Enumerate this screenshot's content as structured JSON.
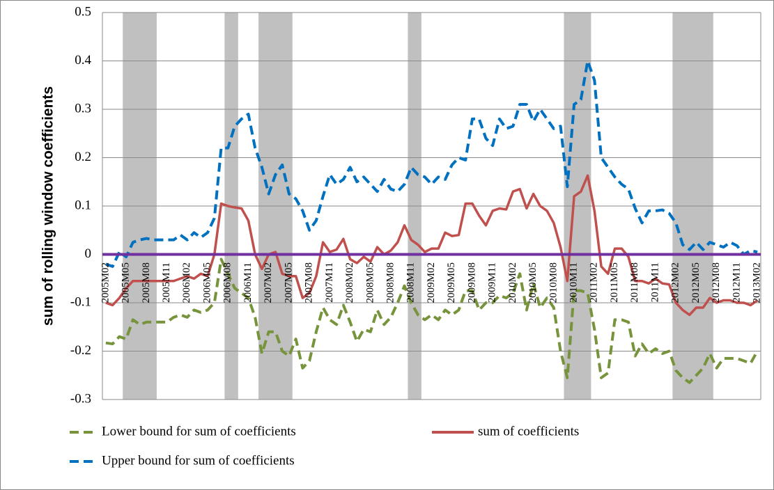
{
  "chart_data": {
    "type": "line",
    "y_axis_label": "sum of rolling window coefficients",
    "categories": [
      "2005M02",
      null,
      null,
      "2005M05",
      null,
      null,
      "2005M08",
      null,
      null,
      "2005M11",
      null,
      null,
      "2006M02",
      null,
      null,
      "2006M05",
      null,
      null,
      "2006M08",
      null,
      null,
      "2006M11",
      null,
      null,
      "2007M02",
      null,
      null,
      "2007M05",
      null,
      null,
      "2007M08",
      null,
      null,
      "2007M11",
      null,
      null,
      "2008M02",
      null,
      null,
      "2008M05",
      null,
      null,
      "2008M08",
      null,
      null,
      "2008M11",
      null,
      null,
      "2009M02",
      null,
      null,
      "2009M05",
      null,
      null,
      "2009M08",
      null,
      null,
      "2009M11",
      null,
      null,
      "2010M02",
      null,
      null,
      "2010M05",
      null,
      null,
      "2010M08",
      null,
      null,
      "2010M11",
      null,
      null,
      "2011M02",
      null,
      null,
      "2011M05",
      null,
      null,
      "2011M08",
      null,
      null,
      "2011M11",
      null,
      null,
      "2012M02",
      null,
      null,
      "2012M05",
      null,
      null,
      "2012M08",
      null,
      null,
      "2012M11",
      null,
      null,
      "2013M02"
    ],
    "series": [
      {
        "name": "Lower bound for sum of coefficients",
        "color": "#77933c",
        "dashed": true,
        "values": [
          -0.183,
          -0.185,
          -0.17,
          -0.175,
          -0.135,
          -0.145,
          -0.14,
          -0.14,
          -0.14,
          -0.14,
          -0.13,
          -0.125,
          -0.13,
          -0.115,
          -0.12,
          -0.115,
          -0.1,
          -0.01,
          -0.04,
          -0.07,
          -0.08,
          -0.09,
          -0.13,
          -0.205,
          -0.16,
          -0.16,
          -0.2,
          -0.21,
          -0.175,
          -0.235,
          -0.22,
          -0.16,
          -0.11,
          -0.135,
          -0.145,
          -0.105,
          -0.14,
          -0.18,
          -0.155,
          -0.16,
          -0.115,
          -0.145,
          -0.13,
          -0.1,
          -0.065,
          -0.1,
          -0.125,
          -0.135,
          -0.125,
          -0.135,
          -0.115,
          -0.125,
          -0.115,
          -0.075,
          -0.075,
          -0.115,
          -0.1,
          -0.1,
          -0.085,
          -0.09,
          -0.08,
          -0.04,
          -0.115,
          -0.06,
          -0.11,
          -0.09,
          -0.11,
          -0.2,
          -0.255,
          -0.075,
          -0.075,
          -0.08,
          -0.155,
          -0.255,
          -0.245,
          -0.135,
          -0.135,
          -0.14,
          -0.21,
          -0.185,
          -0.205,
          -0.195,
          -0.205,
          -0.2,
          -0.24,
          -0.255,
          -0.265,
          -0.25,
          -0.235,
          -0.205,
          -0.235,
          -0.215,
          -0.215,
          -0.215,
          -0.22,
          -0.225,
          -0.2
        ]
      },
      {
        "name": "sum of coefficients",
        "color": "#c0504d",
        "dashed": false,
        "values": [
          -0.1,
          -0.105,
          -0.09,
          -0.07,
          -0.055,
          -0.055,
          -0.055,
          -0.055,
          -0.055,
          -0.055,
          -0.055,
          -0.05,
          -0.045,
          -0.05,
          -0.04,
          -0.045,
          0.0,
          0.105,
          0.1,
          0.097,
          0.095,
          0.07,
          0.0,
          -0.03,
          0.0,
          0.005,
          -0.04,
          -0.045,
          -0.045,
          -0.09,
          -0.08,
          -0.045,
          0.025,
          0.005,
          0.01,
          0.032,
          -0.01,
          -0.018,
          -0.005,
          -0.015,
          0.015,
          0.0,
          0.008,
          0.025,
          0.06,
          0.03,
          0.02,
          0.005,
          0.012,
          0.012,
          0.045,
          0.038,
          0.04,
          0.105,
          0.105,
          0.08,
          0.06,
          0.09,
          0.095,
          0.093,
          0.13,
          0.135,
          0.095,
          0.125,
          0.1,
          0.09,
          0.065,
          0.015,
          -0.055,
          0.12,
          0.13,
          0.163,
          0.09,
          -0.025,
          -0.04,
          0.012,
          0.012,
          -0.005,
          -0.055,
          -0.055,
          -0.06,
          -0.05,
          -0.06,
          -0.062,
          -0.1,
          -0.115,
          -0.125,
          -0.11,
          -0.11,
          -0.09,
          -0.1,
          -0.095,
          -0.095,
          -0.1,
          -0.1,
          -0.105,
          -0.095
        ]
      },
      {
        "name": "Upper bound for sum of coefficients",
        "color": "#0070c0",
        "dashed": true,
        "values": [
          -0.02,
          -0.025,
          0.005,
          -0.005,
          0.025,
          0.03,
          0.033,
          0.03,
          0.03,
          0.03,
          0.03,
          0.04,
          0.03,
          0.045,
          0.035,
          0.045,
          0.075,
          0.22,
          0.22,
          0.265,
          0.28,
          0.29,
          0.22,
          0.18,
          0.125,
          0.165,
          0.185,
          0.125,
          0.115,
          0.09,
          0.05,
          0.07,
          0.12,
          0.165,
          0.145,
          0.155,
          0.18,
          0.15,
          0.16,
          0.145,
          0.13,
          0.155,
          0.135,
          0.13,
          0.145,
          0.18,
          0.165,
          0.16,
          0.145,
          0.16,
          0.155,
          0.185,
          0.2,
          0.195,
          0.28,
          0.28,
          0.24,
          0.225,
          0.28,
          0.26,
          0.265,
          0.31,
          0.31,
          0.275,
          0.3,
          0.28,
          0.26,
          0.265,
          0.14,
          0.31,
          0.32,
          0.4,
          0.36,
          0.2,
          0.18,
          0.16,
          0.145,
          0.135,
          0.095,
          0.065,
          0.09,
          0.09,
          0.092,
          0.085,
          0.065,
          0.02,
          0.01,
          0.025,
          0.01,
          0.025,
          0.02,
          0.015,
          0.025,
          0.018,
          0.0,
          0.008,
          0.005
        ]
      }
    ],
    "reference_line": {
      "value": 0,
      "color": "#7030a0"
    },
    "shaded_ranges": [
      [
        3,
        7
      ],
      [
        18,
        19
      ],
      [
        23,
        27
      ],
      [
        45,
        46
      ],
      [
        68,
        71
      ],
      [
        84,
        89
      ]
    ],
    "shade_color": "#c0c0c0",
    "ylim": [
      -0.3,
      0.5
    ],
    "yticks": [
      -0.3,
      -0.2,
      -0.1,
      0,
      0.1,
      0.2,
      0.3,
      0.4,
      0.5
    ],
    "grid": true
  }
}
